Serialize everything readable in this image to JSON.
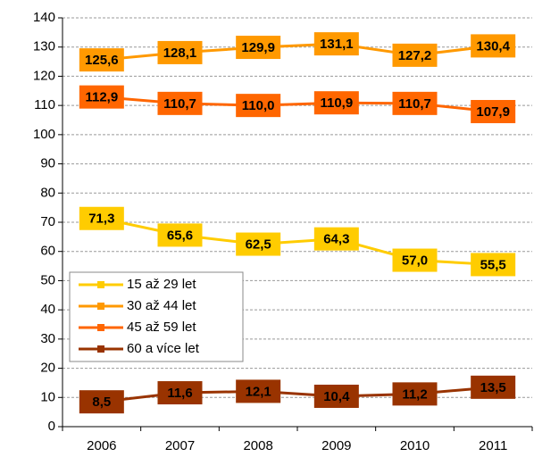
{
  "chart_data": {
    "type": "line",
    "categories": [
      "2006",
      "2007",
      "2008",
      "2009",
      "2010",
      "2011"
    ],
    "series": [
      {
        "name": "15 až 29 let",
        "color": "#ffcc00",
        "values": [
          71.3,
          65.6,
          62.5,
          64.3,
          57.0,
          55.5
        ],
        "value_labels": [
          "71,3",
          "65,6",
          "62,5",
          "64,3",
          "57,0",
          "55,5"
        ]
      },
      {
        "name": "30 až 44 let",
        "color": "#ff9900",
        "values": [
          125.6,
          128.1,
          129.9,
          131.1,
          127.2,
          130.4
        ],
        "value_labels": [
          "125,6",
          "128,1",
          "129,9",
          "131,1",
          "127,2",
          "130,4"
        ]
      },
      {
        "name": "45 až 59 let",
        "color": "#ff6600",
        "values": [
          112.9,
          110.7,
          110.0,
          110.9,
          110.7,
          107.9
        ],
        "value_labels": [
          "112,9",
          "110,7",
          "110,0",
          "110,9",
          "110,7",
          "107,9"
        ]
      },
      {
        "name": "60 a více let",
        "color": "#993300",
        "values": [
          8.5,
          11.6,
          12.1,
          10.4,
          11.2,
          13.5
        ],
        "value_labels": [
          "8,5",
          "11,6",
          "12,1",
          "10,4",
          "11,2",
          "13,5"
        ]
      }
    ],
    "ylim": [
      0,
      140
    ],
    "yticks": [
      0,
      10,
      20,
      30,
      40,
      50,
      60,
      70,
      80,
      90,
      100,
      110,
      120,
      130,
      140
    ],
    "grid": true,
    "legend": "lower-left"
  }
}
